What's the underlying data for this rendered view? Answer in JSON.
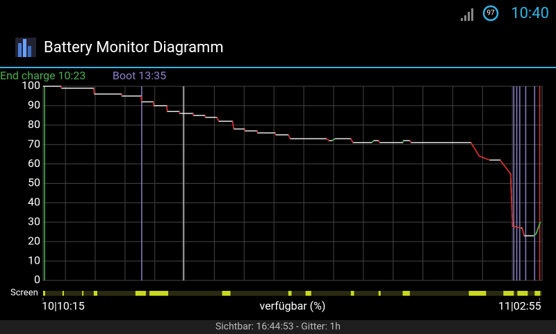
{
  "status_bar": {
    "battery": "97",
    "time": "10:40"
  },
  "app_bar": {
    "title": "Battery Monitor Diagramm"
  },
  "chart_data": {
    "type": "line",
    "x_label": "verfügbar (%)",
    "xlim": [
      0,
      16.75
    ],
    "xticks": [
      {
        "value": 0,
        "label": "10|10:15"
      },
      {
        "value": 16.67,
        "label": "11|02:55"
      }
    ],
    "x_grid_start": 0.75,
    "ylim": [
      0,
      100
    ],
    "yticks": [
      0,
      10,
      20,
      30,
      40,
      50,
      60,
      70,
      80,
      90,
      100
    ],
    "grid": true,
    "x": [
      0,
      0.6,
      0.62,
      1.7,
      1.72,
      2.63,
      2.65,
      3.29,
      3.31,
      3.7,
      3.72,
      4.15,
      4.17,
      4.57,
      4.59,
      5.03,
      5.05,
      5.43,
      5.45,
      5.83,
      5.9,
      6.36,
      6.4,
      6.76,
      6.78,
      7.18,
      7.2,
      7.79,
      7.81,
      8.23,
      8.3,
      9.51,
      9.6,
      9.7,
      9.8,
      10.33,
      10.4,
      11.03,
      11.1,
      11.26,
      11.3,
      12.07,
      12.1,
      12.31,
      12.35,
      14.36,
      14.64,
      14.99,
      15.34,
      15.69,
      15.76,
      16.04,
      16.08,
      16.15,
      16.46,
      16.55,
      16.69
    ],
    "series": [
      {
        "color": "#e8e8e8",
        "values": [
          100,
          100,
          99,
          99,
          96,
          96,
          95,
          95,
          92,
          92,
          90,
          90,
          87,
          87,
          86,
          86,
          85,
          85,
          84,
          84,
          82,
          82,
          78,
          78,
          77,
          77,
          76,
          76,
          75,
          75,
          73,
          73,
          72,
          72,
          73,
          73,
          71,
          71,
          72,
          72,
          71,
          71,
          72,
          72,
          71,
          71,
          64,
          62,
          62,
          55,
          28,
          27,
          27,
          23,
          23,
          24,
          30
        ]
      }
    ],
    "events": [
      {
        "label": "End charge 10:23",
        "x": 0.05,
        "color": "#4caf50"
      },
      {
        "label": "Boot 13:35",
        "x": 3.31,
        "color": "#8a80c8"
      },
      {
        "x": 4.71,
        "color": "#bbbbbb"
      },
      {
        "x": 15.8,
        "color": "#8a80c8"
      },
      {
        "x": 15.9,
        "color": "#8a80c8"
      },
      {
        "x": 16.0,
        "color": "#8a80c8"
      },
      {
        "x": 16.2,
        "color": "#8a80c8"
      },
      {
        "x": 16.5,
        "color": "#8a80c8"
      },
      {
        "x": 16.67,
        "color": "#e03030"
      }
    ],
    "screen_label": "Screen",
    "screen_on": [
      [
        0,
        0.07
      ],
      [
        0.65,
        0.7
      ],
      [
        1.31,
        1.35
      ],
      [
        1.7,
        1.82
      ],
      [
        3.1,
        3.45
      ],
      [
        3.57,
        4.2
      ],
      [
        6.01,
        6.29
      ],
      [
        8.23,
        8.34
      ],
      [
        8.81,
        9.0
      ],
      [
        10.33,
        10.44
      ],
      [
        11.26,
        11.33
      ],
      [
        12.07,
        12.31
      ],
      [
        14.29,
        14.87
      ],
      [
        15.45,
        15.8
      ],
      [
        15.92,
        16.27
      ],
      [
        16.5,
        16.69
      ]
    ]
  },
  "footer": "Sichtbar: 16:44:53 - Gitter: 1h"
}
